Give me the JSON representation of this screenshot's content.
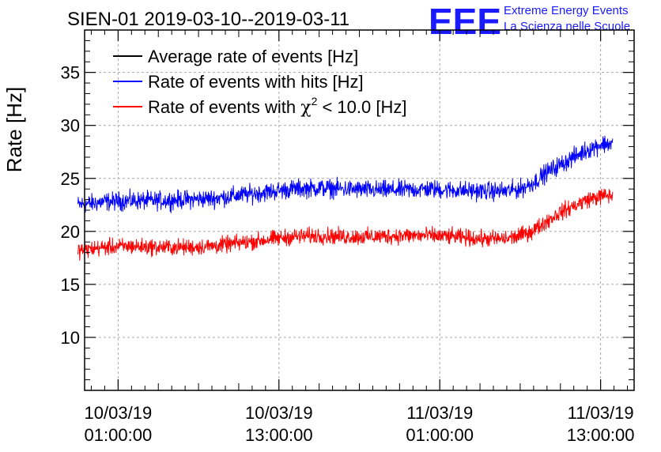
{
  "chart_data": {
    "type": "line",
    "title": "SIEN-01 2019-03-10--2019-03-11",
    "logo": {
      "acronym": "EEE",
      "line1": "Extreme Energy Events",
      "line2": "La Scienza nelle Scuole"
    },
    "ylabel": "Rate [Hz]",
    "xlabel": "",
    "ylim": [
      5,
      39
    ],
    "xlim": [
      -2.5,
      38.5
    ],
    "x_unit": "hours since 10/03/19 01:00:00",
    "y_ticks": [
      {
        "value": 10,
        "label": "10"
      },
      {
        "value": 15,
        "label": "15"
      },
      {
        "value": 20,
        "label": "20"
      },
      {
        "value": 25,
        "label": "25"
      },
      {
        "value": 30,
        "label": "30"
      },
      {
        "value": 35,
        "label": "35"
      }
    ],
    "x_ticks": [
      {
        "value": 0,
        "date": "10/03/19",
        "time": "01:00:00"
      },
      {
        "value": 12,
        "date": "10/03/19",
        "time": "13:00:00"
      },
      {
        "value": 24,
        "date": "11/03/19",
        "time": "01:00:00"
      },
      {
        "value": 36,
        "date": "11/03/19",
        "time": "13:00:00"
      }
    ],
    "grid": true,
    "legend": {
      "position": "top-left",
      "entries": [
        {
          "label": "Average rate of events [Hz]",
          "color": "#000000"
        },
        {
          "label": "Rate of events with hits [Hz]",
          "color": "#0000ff"
        },
        {
          "label_prefix": "Rate of events with ",
          "label_symbol": "χ",
          "label_sup": "2",
          "label_suffix": " < 10.0 [Hz]",
          "color": "#ff0000"
        }
      ]
    },
    "series": [
      {
        "name": "Average rate of events [Hz]",
        "color": "#000000",
        "x": [],
        "y": []
      },
      {
        "name": "Rate of events with hits [Hz]",
        "color": "#0000ff",
        "noise_amplitude": 0.9,
        "x": [
          -3,
          -1,
          1,
          3,
          5,
          7,
          9,
          11,
          13,
          15,
          17,
          19,
          21,
          23,
          25,
          27,
          29,
          30,
          31,
          32,
          33,
          34,
          35,
          36,
          36.5,
          36.9
        ],
        "y": [
          22.5,
          22.8,
          22.9,
          22.9,
          23.0,
          23.1,
          23.4,
          23.7,
          24.0,
          24.1,
          24.0,
          23.9,
          23.9,
          24.0,
          23.9,
          23.8,
          23.8,
          24.0,
          24.6,
          25.6,
          26.3,
          27.0,
          27.7,
          28.2,
          28.3,
          28.2
        ]
      },
      {
        "name": "Rate of events with χ2 < 10.0 [Hz]",
        "color": "#ff0000",
        "noise_amplitude": 0.8,
        "x": [
          -3,
          -1,
          1,
          3,
          5,
          7,
          9,
          11,
          13,
          15,
          17,
          19,
          21,
          23,
          25,
          27,
          29,
          30,
          31,
          32,
          33,
          34,
          35,
          36,
          36.5,
          36.9
        ],
        "y": [
          18.2,
          18.5,
          18.6,
          18.5,
          18.5,
          18.6,
          18.9,
          19.2,
          19.5,
          19.6,
          19.5,
          19.5,
          19.6,
          19.6,
          19.5,
          19.3,
          19.3,
          19.6,
          20.1,
          21.0,
          21.8,
          22.4,
          23.0,
          23.3,
          23.4,
          23.3
        ]
      }
    ]
  }
}
